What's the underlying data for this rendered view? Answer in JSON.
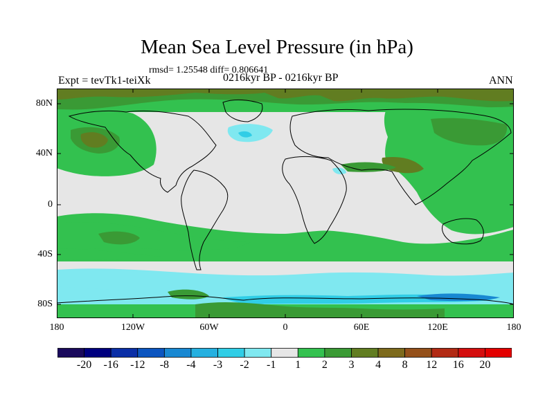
{
  "title": "Mean Sea Level Pressure (in hPa)",
  "stats": "rmsd= 1.25548 diff= 0.806641",
  "left_label": "Expt = tevTk1-teiXk",
  "center_label": "0216kyr BP - 0216kyr BP",
  "right_label": "ANN",
  "lat_labels": [
    "80N",
    "40N",
    "0",
    "40S",
    "80S"
  ],
  "lon_labels": [
    "180",
    "120W",
    "60W",
    "0",
    "60E",
    "120E",
    "180"
  ],
  "colorbar": {
    "labels": [
      "-20",
      "-16",
      "-12",
      "-8",
      "-4",
      "-3",
      "-2",
      "-1",
      "1",
      "2",
      "3",
      "4",
      "8",
      "12",
      "16",
      "20"
    ],
    "colors": [
      "#1a0a5c",
      "#00007f",
      "#0a2ea6",
      "#0b55c0",
      "#1888d2",
      "#25b0e0",
      "#30cde6",
      "#7fe8f0",
      "#e6e6e6",
      "#33c14f",
      "#3a9a35",
      "#617d21",
      "#7d6a1c",
      "#94501a",
      "#b22a14",
      "#d40e0e",
      "#e30000"
    ]
  }
}
